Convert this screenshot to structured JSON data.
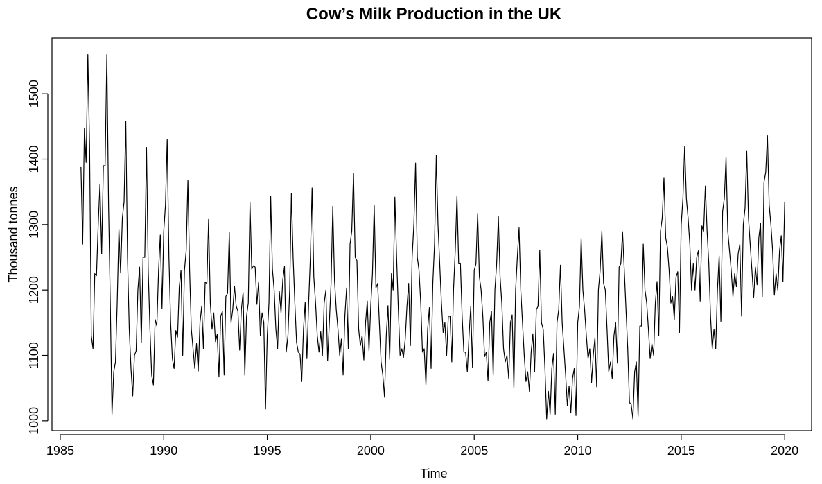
{
  "chart_data": {
    "type": "line",
    "title": "Cow’s Milk Production in the UK",
    "xlabel": "Time",
    "ylabel": "Thousand tonnes",
    "xlim": [
      1984.6,
      2021.3
    ],
    "ylim": [
      985,
      1585
    ],
    "x_ticks": [
      1985,
      1990,
      1995,
      2000,
      2005,
      2010,
      2015,
      2020
    ],
    "y_ticks": [
      1000,
      1100,
      1200,
      1300,
      1400,
      1500
    ],
    "grid": false,
    "legend": "none",
    "line_color": "#000000",
    "x_start": 1986.0,
    "x_step": 0.0833333,
    "values": [
      1388,
      1270,
      1447,
      1395,
      1560,
      1420,
      1130,
      1110,
      1225,
      1222,
      1300,
      1362,
      1255,
      1390,
      1390,
      1560,
      1330,
      1180,
      1010,
      1075,
      1090,
      1180,
      1293,
      1226,
      1310,
      1335,
      1458,
      1250,
      1140,
      1080,
      1038,
      1100,
      1107,
      1200,
      1235,
      1120,
      1250,
      1250,
      1418,
      1230,
      1140,
      1070,
      1055,
      1155,
      1145,
      1230,
      1284,
      1172,
      1290,
      1330,
      1430,
      1250,
      1150,
      1095,
      1080,
      1138,
      1128,
      1205,
      1230,
      1100,
      1230,
      1260,
      1368,
      1230,
      1140,
      1110,
      1080,
      1118,
      1076,
      1150,
      1175,
      1110,
      1212,
      1210,
      1308,
      1180,
      1140,
      1165,
      1121,
      1132,
      1067,
      1160,
      1167,
      1070,
      1190,
      1195,
      1288,
      1150,
      1170,
      1206,
      1175,
      1168,
      1108,
      1170,
      1196,
      1070,
      1160,
      1180,
      1334,
      1232,
      1237,
      1235,
      1178,
      1212,
      1130,
      1165,
      1150,
      1018,
      1130,
      1180,
      1343,
      1232,
      1200,
      1140,
      1110,
      1198,
      1165,
      1215,
      1236,
      1105,
      1130,
      1200,
      1348,
      1250,
      1180,
      1120,
      1105,
      1102,
      1060,
      1140,
      1181,
      1095,
      1180,
      1250,
      1356,
      1220,
      1180,
      1130,
      1105,
      1136,
      1100,
      1180,
      1200,
      1092,
      1150,
      1210,
      1328,
      1215,
      1170,
      1140,
      1100,
      1125,
      1070,
      1160,
      1203,
      1110,
      1270,
      1290,
      1378,
      1250,
      1245,
      1140,
      1115,
      1130,
      1093,
      1150,
      1183,
      1107,
      1175,
      1225,
      1330,
      1203,
      1210,
      1150,
      1090,
      1070,
      1036,
      1130,
      1176,
      1094,
      1225,
      1200,
      1342,
      1250,
      1170,
      1100,
      1110,
      1097,
      1125,
      1175,
      1210,
      1115,
      1250,
      1300,
      1394,
      1250,
      1230,
      1180,
      1105,
      1110,
      1055,
      1140,
      1173,
      1080,
      1210,
      1270,
      1406,
      1300,
      1240,
      1180,
      1135,
      1150,
      1100,
      1160,
      1160,
      1090,
      1200,
      1260,
      1344,
      1240,
      1240,
      1160,
      1105,
      1105,
      1075,
      1130,
      1175,
      1082,
      1230,
      1240,
      1317,
      1220,
      1200,
      1160,
      1098,
      1105,
      1061,
      1150,
      1167,
      1070,
      1200,
      1240,
      1312,
      1220,
      1180,
      1110,
      1090,
      1100,
      1065,
      1150,
      1162,
      1050,
      1200,
      1250,
      1295,
      1200,
      1150,
      1100,
      1060,
      1075,
      1045,
      1105,
      1133,
      1075,
      1170,
      1175,
      1261,
      1150,
      1140,
      1080,
      1003,
      1045,
      1010,
      1080,
      1103,
      1010,
      1150,
      1170,
      1238,
      1150,
      1110,
      1070,
      1023,
      1053,
      1012,
      1065,
      1080,
      1008,
      1150,
      1175,
      1279,
      1200,
      1170,
      1130,
      1095,
      1110,
      1058,
      1100,
      1127,
      1052,
      1200,
      1230,
      1290,
      1210,
      1200,
      1140,
      1075,
      1090,
      1065,
      1130,
      1150,
      1088,
      1235,
      1240,
      1289,
      1230,
      1170,
      1110,
      1028,
      1025,
      1003,
      1075,
      1090,
      1007,
      1145,
      1145,
      1270,
      1200,
      1180,
      1140,
      1095,
      1118,
      1100,
      1180,
      1213,
      1130,
      1290,
      1310,
      1372,
      1280,
      1265,
      1230,
      1180,
      1190,
      1155,
      1220,
      1228,
      1135,
      1300,
      1340,
      1420,
      1340,
      1310,
      1270,
      1200,
      1240,
      1200,
      1250,
      1260,
      1183,
      1298,
      1290,
      1359,
      1290,
      1240,
      1160,
      1110,
      1140,
      1110,
      1200,
      1252,
      1152,
      1320,
      1340,
      1403,
      1290,
      1260,
      1230,
      1190,
      1225,
      1205,
      1255,
      1270,
      1160,
      1300,
      1325,
      1412,
      1310,
      1270,
      1230,
      1188,
      1235,
      1208,
      1280,
      1302,
      1190,
      1365,
      1380,
      1436,
      1330,
      1300,
      1260,
      1192,
      1225,
      1200,
      1260,
      1283,
      1213,
      1335
    ]
  }
}
